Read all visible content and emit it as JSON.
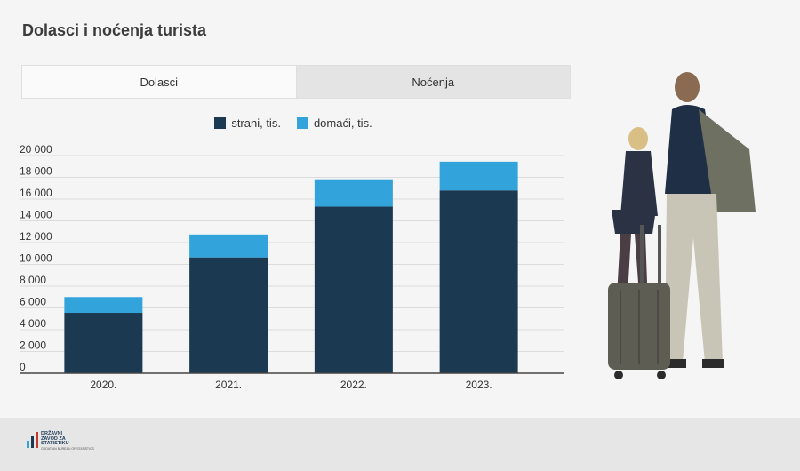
{
  "page": {
    "title": "Dolasci i noćenja turista",
    "tabs": [
      {
        "label": "Dolasci",
        "active": true
      },
      {
        "label": "Noćenja",
        "active": false
      }
    ],
    "logo": {
      "lines": [
        "DRŽAVNI",
        "ZAVOD ZA",
        "STATISTIKU"
      ],
      "subtitle": "CROATIAN BUREAU OF STATISTICS"
    }
  },
  "colors": {
    "strani": "#1b3a52",
    "domaci": "#33a3dc"
  },
  "chart_data": {
    "type": "bar",
    "stacked": true,
    "categories": [
      "2020.",
      "2021.",
      "2022.",
      "2023."
    ],
    "series": [
      {
        "name": "strani, tis.",
        "values": [
          5550,
          10640,
          15310,
          16800
        ]
      },
      {
        "name": "domaći, tis.",
        "values": [
          1450,
          2110,
          2510,
          2640
        ]
      }
    ],
    "ylim": [
      0,
      20000
    ],
    "yticks": [
      0,
      2000,
      4000,
      6000,
      8000,
      10000,
      12000,
      14000,
      16000,
      18000,
      20000
    ],
    "ytick_labels": [
      "0",
      "2 000",
      "4 000",
      "6 000",
      "8 000",
      "10 000",
      "12 000",
      "14 000",
      "16 000",
      "18 000",
      "20 000"
    ],
    "grid": true,
    "legend": "top-center",
    "xlabel": "",
    "ylabel": ""
  }
}
